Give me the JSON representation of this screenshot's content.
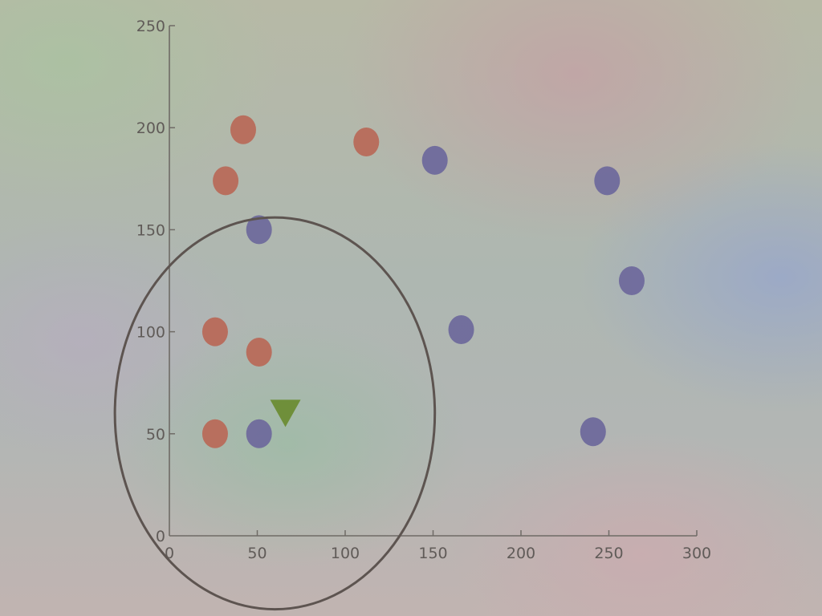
{
  "chart_data": {
    "type": "scatter",
    "title": "",
    "xlabel": "",
    "ylabel": "",
    "xlim": [
      0,
      300
    ],
    "ylim": [
      0,
      250
    ],
    "x_ticks": [
      0,
      50,
      100,
      150,
      200,
      250,
      300
    ],
    "y_ticks": [
      0,
      50,
      100,
      150,
      200,
      250
    ],
    "x_tick_labels": [
      "0",
      "50",
      "100",
      "150",
      "200",
      "250",
      "300"
    ],
    "y_tick_labels": [
      "0",
      "50",
      "100",
      "150",
      "200",
      "250"
    ],
    "grid": false,
    "series": [
      {
        "color": "#b86a5a",
        "marker": "circle",
        "points": [
          {
            "x": 42,
            "y": 199
          },
          {
            "x": 32,
            "y": 174
          },
          {
            "x": 112,
            "y": 193
          },
          {
            "x": 26,
            "y": 100
          },
          {
            "x": 51,
            "y": 90
          },
          {
            "x": 26,
            "y": 50
          }
        ]
      },
      {
        "color": "#6f6a9c",
        "marker": "circle",
        "points": [
          {
            "x": 151,
            "y": 184
          },
          {
            "x": 249,
            "y": 174
          },
          {
            "x": 51,
            "y": 150
          },
          {
            "x": 263,
            "y": 125
          },
          {
            "x": 166,
            "y": 101
          },
          {
            "x": 51,
            "y": 50
          },
          {
            "x": 241,
            "y": 51
          }
        ]
      },
      {
        "color": "#6f8f3a",
        "marker": "triangle-down",
        "points": [
          {
            "x": 66,
            "y": 60
          }
        ]
      }
    ],
    "annotations": [
      {
        "type": "ellipse",
        "center": {
          "x": 60,
          "y": 60
        },
        "radius_x": 91,
        "radius_y": 96,
        "color": "#5d5450"
      }
    ]
  }
}
